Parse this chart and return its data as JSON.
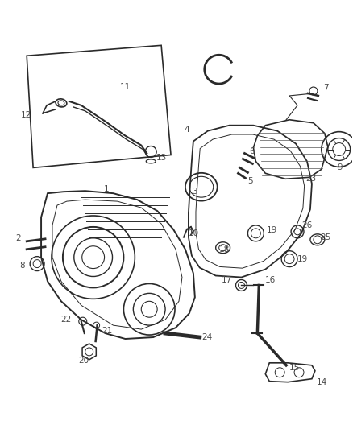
{
  "background_color": "#ffffff",
  "figsize": [
    4.38,
    5.33
  ],
  "dpi": 100,
  "line_color": "#2a2a2a",
  "label_color": "#4a4a4a",
  "label_fontsize": 7.5
}
